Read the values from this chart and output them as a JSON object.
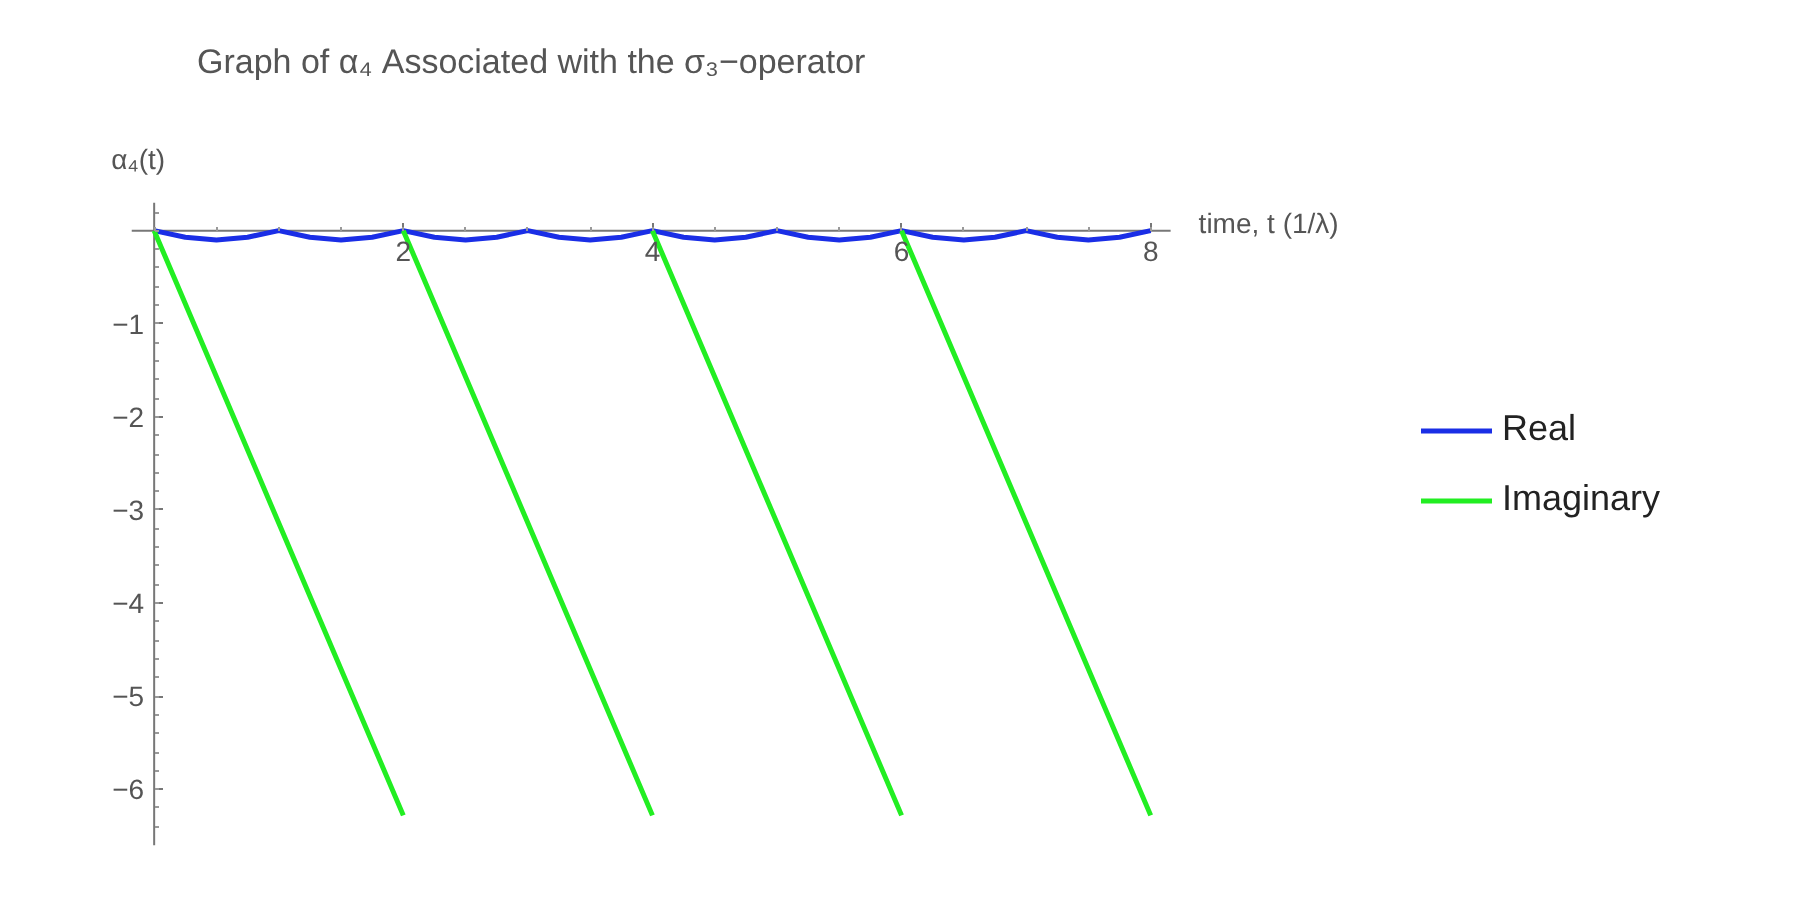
{
  "chart_data": {
    "type": "line",
    "title": "Graph of α₄ Associated with the σ₃−operator",
    "xlabel": "time, t (1/λ)",
    "ylabel": "α₄(t)",
    "xlim": [
      -0.18,
      8.16
    ],
    "ylim": [
      -6.6,
      0.3
    ],
    "xticks": [
      2,
      4,
      6,
      8
    ],
    "yticks": [
      -6,
      -5,
      -4,
      -3,
      -2,
      -1
    ],
    "grid": false,
    "legend": "right",
    "marker": "none",
    "line_style": "solid",
    "series": [
      {
        "name": "Real",
        "color": "#1a2ee6",
        "x": [
          0,
          0.25,
          0.5,
          0.75,
          1,
          1.25,
          1.5,
          1.75,
          2,
          2.25,
          2.5,
          2.75,
          3,
          3.25,
          3.5,
          3.75,
          4,
          4.25,
          4.5,
          4.75,
          5,
          5.25,
          5.5,
          5.75,
          6,
          6.25,
          6.5,
          6.75,
          7,
          7.25,
          7.5,
          7.75,
          8
        ],
        "values": [
          0,
          -0.07,
          -0.1,
          -0.07,
          0,
          -0.07,
          -0.1,
          -0.07,
          0,
          -0.07,
          -0.1,
          -0.07,
          0,
          -0.07,
          -0.1,
          -0.07,
          0,
          -0.07,
          -0.1,
          -0.07,
          0,
          -0.07,
          -0.1,
          -0.07,
          0,
          -0.07,
          -0.1,
          -0.07,
          0,
          -0.07,
          -0.1,
          -0.07,
          0
        ]
      },
      {
        "name": "Imaginary",
        "color": "#22ee22",
        "x": [
          0,
          1,
          2,
          null,
          2,
          3,
          4,
          null,
          4,
          5,
          6,
          null,
          6,
          7,
          8
        ],
        "values": [
          0,
          -3.14,
          -6.28,
          null,
          0,
          -3.14,
          -6.28,
          null,
          0,
          -3.14,
          -6.28,
          null,
          0,
          -3.14,
          -6.28
        ]
      }
    ]
  }
}
